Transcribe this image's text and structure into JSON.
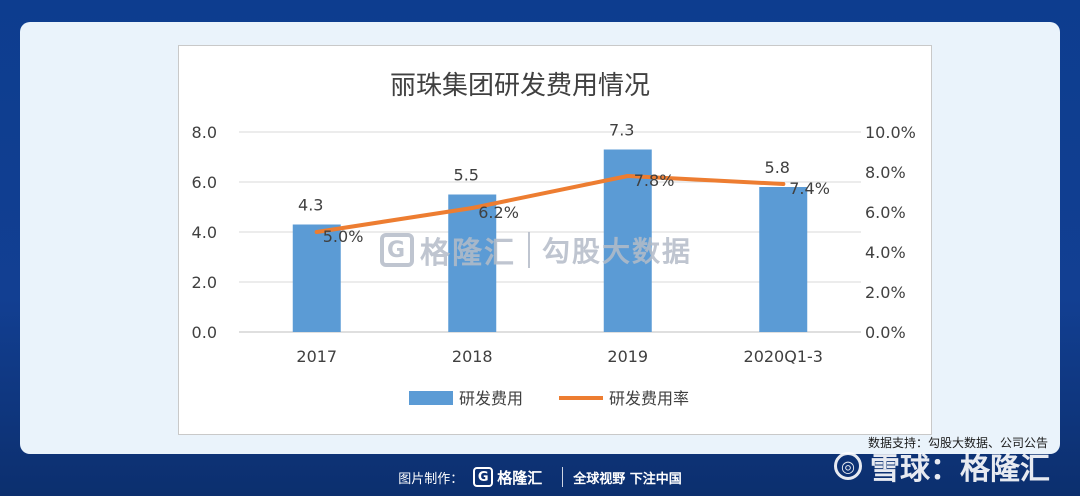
{
  "chart_data": {
    "type": "bar",
    "title": "丽珠集团研发费用情况",
    "categories": [
      "2017",
      "2018",
      "2019",
      "2020Q1-3"
    ],
    "series": [
      {
        "name": "研发费用",
        "type": "bar",
        "axis": "left",
        "values": [
          4.3,
          5.5,
          7.3,
          5.8
        ],
        "labels": [
          "4.3",
          "5.5",
          "7.3",
          "5.8"
        ],
        "color": "#5b9bd5"
      },
      {
        "name": "研发费用率",
        "type": "line",
        "axis": "right",
        "values": [
          5.0,
          6.2,
          7.8,
          7.4
        ],
        "labels": [
          "5.0%",
          "6.2%",
          "7.8%",
          "7.4%"
        ],
        "color": "#ed7d31"
      }
    ],
    "y_left": {
      "min": 0,
      "max": 8,
      "ticks": [
        "0.0",
        "2.0",
        "4.0",
        "6.0",
        "8.0"
      ]
    },
    "y_right": {
      "min": 0,
      "max": 10,
      "ticks": [
        "0.0%",
        "2.0%",
        "4.0%",
        "6.0%",
        "8.0%",
        "10.0%"
      ]
    },
    "grid": true,
    "legend_position": "bottom"
  },
  "watermark": {
    "logo": "G",
    "brand": "格隆汇",
    "text": "勾股大数据"
  },
  "source": "数据支持：勾股大数据、公司公告",
  "footer": {
    "prefix": "图片制作：",
    "logo": "G",
    "brand": "格隆汇",
    "slogan": "全球视野 下注中国"
  },
  "xueqiu": {
    "text": "雪球：格隆汇",
    "icon": "xueqiu-logo-icon"
  }
}
